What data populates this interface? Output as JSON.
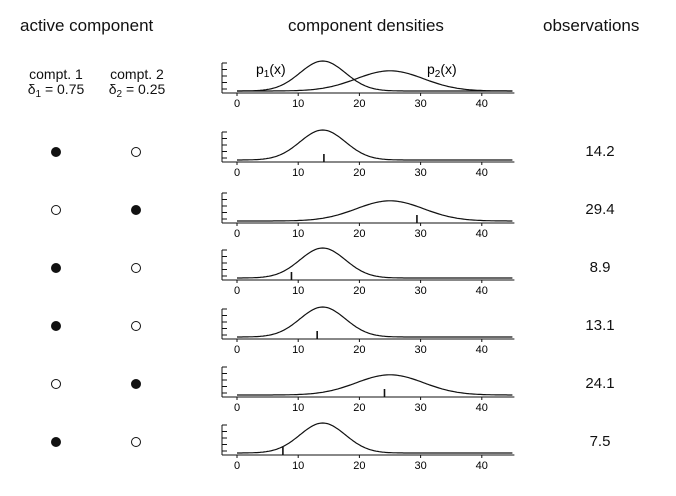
{
  "headers": {
    "active_component": "active component",
    "component_densities": "component densities",
    "observations": "observations"
  },
  "components": [
    {
      "label": "compt. 1",
      "delta_symbol": "δ",
      "delta_sub": "1",
      "delta_value": "= 0.75"
    },
    {
      "label": "compt. 2",
      "delta_symbol": "δ",
      "delta_sub": "2",
      "delta_value": "= 0.25"
    }
  ],
  "density_labels": [
    {
      "prefix": "p",
      "sub": "1",
      "suffix": "(x)"
    },
    {
      "prefix": "p",
      "sub": "2",
      "suffix": "(x)"
    }
  ],
  "chart_data": {
    "type": "line",
    "x_ticks": [
      0,
      10,
      20,
      30,
      40
    ],
    "xlim": [
      0,
      45
    ],
    "components": [
      {
        "name": "p1(x)",
        "mean": 14,
        "sd": 3.7
      },
      {
        "name": "p2(x)",
        "mean": 25,
        "sd": 5.5
      }
    ],
    "rows": [
      {
        "active": 1,
        "observation": 14.2
      },
      {
        "active": 2,
        "observation": 29.4
      },
      {
        "active": 1,
        "observation": 8.9
      },
      {
        "active": 1,
        "observation": 13.1
      },
      {
        "active": 2,
        "observation": 24.1
      },
      {
        "active": 1,
        "observation": 7.5
      }
    ]
  },
  "observation_labels": [
    "14.2",
    "29.4",
    "8.9",
    "13.1",
    "24.1",
    "7.5"
  ]
}
